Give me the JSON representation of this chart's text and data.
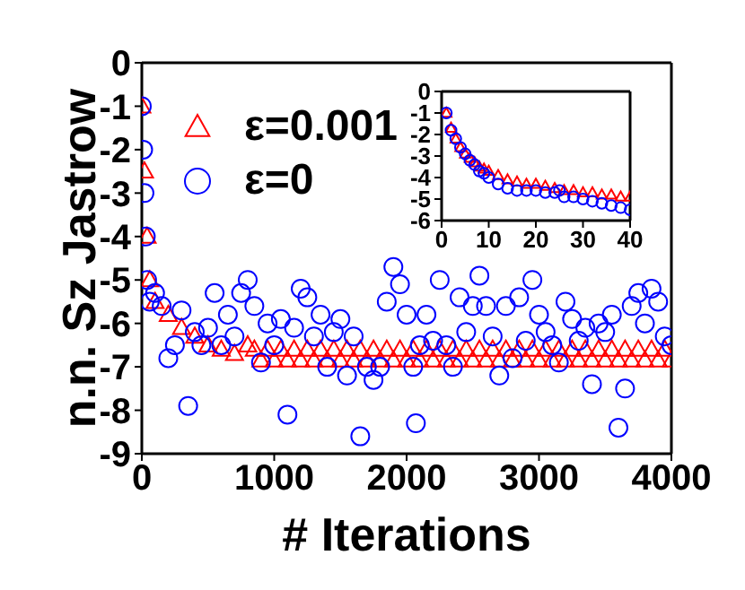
{
  "chart_data": [
    {
      "type": "scatter",
      "xlabel": "# Iterations",
      "ylabel": "n.n. Sz  Jastrow",
      "xlim": [
        0,
        4000
      ],
      "xticks": [
        0,
        1000,
        2000,
        3000,
        4000
      ],
      "ylim": [
        -9,
        0
      ],
      "yticks": [
        -9,
        -8,
        -7,
        -6,
        -5,
        -4,
        -3,
        -2,
        -1,
        0
      ],
      "legend": "top left",
      "series": [
        {
          "name": "ε=0.001",
          "color": "#ff0000",
          "marker": "triangle",
          "x": [
            0,
            20,
            40,
            60,
            100,
            200,
            300,
            400,
            500,
            600,
            700,
            800,
            850,
            900,
            950,
            1000,
            1050,
            1100,
            1150,
            1200,
            1250,
            1300,
            1350,
            1400,
            1450,
            1500,
            1550,
            1600,
            1650,
            1700,
            1750,
            1800,
            1850,
            1900,
            1950,
            2000,
            2050,
            2100,
            2150,
            2200,
            2250,
            2300,
            2350,
            2400,
            2450,
            2500,
            2550,
            2600,
            2650,
            2700,
            2750,
            2800,
            2850,
            2900,
            2950,
            3000,
            3050,
            3100,
            3150,
            3200,
            3250,
            3300,
            3350,
            3400,
            3450,
            3500,
            3550,
            3600,
            3650,
            3700,
            3750,
            3800,
            3850,
            3900,
            3950,
            4000
          ],
          "values": [
            -1,
            -2.5,
            -4,
            -5,
            -5.5,
            -5.8,
            -6.1,
            -6.3,
            -6.5,
            -6.6,
            -6.7,
            -6.5,
            -6.6,
            -6.85,
            -6.6,
            -6.85,
            -6.6,
            -6.85,
            -6.6,
            -6.85,
            -6.6,
            -6.85,
            -6.6,
            -6.85,
            -6.6,
            -6.85,
            -6.6,
            -6.85,
            -6.6,
            -6.85,
            -6.6,
            -6.85,
            -6.6,
            -6.85,
            -6.6,
            -6.85,
            -6.6,
            -6.85,
            -6.6,
            -6.85,
            -6.6,
            -6.85,
            -6.6,
            -6.85,
            -6.6,
            -6.85,
            -6.6,
            -6.85,
            -6.6,
            -6.85,
            -6.6,
            -6.85,
            -6.6,
            -6.85,
            -6.6,
            -6.85,
            -6.6,
            -6.85,
            -6.6,
            -6.85,
            -6.6,
            -6.85,
            -6.6,
            -6.85,
            -6.6,
            -6.85,
            -6.6,
            -6.85,
            -6.6,
            -6.85,
            -6.6,
            -6.85,
            -6.6,
            -6.85,
            -6.6,
            -6.85
          ]
        },
        {
          "name": "ε=0",
          "color": "#0000ff",
          "marker": "circle",
          "x": [
            0,
            10,
            20,
            30,
            40,
            60,
            100,
            150,
            200,
            250,
            300,
            350,
            400,
            450,
            500,
            550,
            600,
            650,
            700,
            750,
            800,
            850,
            900,
            950,
            1000,
            1050,
            1100,
            1150,
            1200,
            1250,
            1300,
            1350,
            1400,
            1450,
            1500,
            1550,
            1600,
            1650,
            1700,
            1750,
            1800,
            1850,
            1900,
            1950,
            2000,
            2050,
            2070,
            2100,
            2150,
            2200,
            2250,
            2300,
            2350,
            2400,
            2450,
            2500,
            2550,
            2600,
            2650,
            2700,
            2750,
            2800,
            2850,
            2900,
            2950,
            3000,
            3050,
            3100,
            3150,
            3200,
            3250,
            3300,
            3350,
            3400,
            3450,
            3500,
            3550,
            3600,
            3650,
            3700,
            3750,
            3800,
            3850,
            3900,
            3950,
            4000
          ],
          "values": [
            -1,
            -2,
            -3,
            -4,
            -5,
            -5.5,
            -5.3,
            -5.6,
            -6.8,
            -6.5,
            -5.7,
            -7.9,
            -6.2,
            -6.5,
            -6.1,
            -5.3,
            -6.5,
            -5.8,
            -6.3,
            -5.3,
            -5.0,
            -5.6,
            -6.9,
            -6.0,
            -6.5,
            -5.9,
            -8.1,
            -6.1,
            -5.2,
            -5.4,
            -6.3,
            -5.8,
            -7.0,
            -6.2,
            -5.9,
            -7.2,
            -6.3,
            -8.6,
            -7.0,
            -7.3,
            -7.0,
            -5.5,
            -4.7,
            -5.1,
            -5.8,
            -7.0,
            -8.3,
            -6.5,
            -5.8,
            -6.4,
            -5.0,
            -6.5,
            -7.0,
            -5.4,
            -6.2,
            -5.6,
            -4.9,
            -5.6,
            -6.3,
            -7.2,
            -5.6,
            -6.8,
            -5.4,
            -6.4,
            -5.0,
            -5.8,
            -6.2,
            -6.5,
            -6.9,
            -5.5,
            -5.9,
            -6.4,
            -6.1,
            -7.4,
            -6.0,
            -6.2,
            -5.8,
            -8.4,
            -7.5,
            -5.6,
            -5.3,
            -6.0,
            -5.2,
            -5.5,
            -6.3,
            -6.5
          ]
        }
      ]
    },
    {
      "type": "scatter",
      "xlim": [
        0,
        40
      ],
      "xticks": [
        0,
        10,
        20,
        30,
        40
      ],
      "ylim": [
        -6,
        0
      ],
      "yticks": [
        -6,
        -5,
        -4,
        -3,
        -2,
        -1,
        0
      ],
      "series": [
        {
          "color": "#ff0000",
          "marker": "triangle",
          "x": [
            1,
            2,
            3,
            4,
            5,
            6,
            7,
            8,
            9,
            10,
            12,
            14,
            16,
            18,
            20,
            22,
            24,
            26,
            28,
            30,
            32,
            34,
            36,
            38,
            40
          ],
          "values": [
            -1,
            -1.7,
            -2.2,
            -2.6,
            -2.9,
            -3.1,
            -3.3,
            -3.5,
            -3.6,
            -3.7,
            -3.9,
            -4.1,
            -4.2,
            -4.3,
            -4.3,
            -4.4,
            -4.5,
            -4.6,
            -4.6,
            -4.7,
            -4.7,
            -4.8,
            -4.8,
            -4.9,
            -4.9
          ]
        },
        {
          "color": "#0000ff",
          "marker": "circle",
          "x": [
            1,
            2,
            3,
            4,
            5,
            6,
            7,
            8,
            9,
            10,
            12,
            14,
            16,
            18,
            20,
            22,
            24,
            25,
            26,
            28,
            30,
            32,
            34,
            36,
            38,
            40
          ],
          "values": [
            -1,
            -1.8,
            -2.2,
            -2.6,
            -2.9,
            -3.2,
            -3.4,
            -3.7,
            -3.8,
            -4.0,
            -4.3,
            -4.5,
            -4.6,
            -4.6,
            -4.6,
            -4.7,
            -4.7,
            -4.6,
            -4.9,
            -4.9,
            -5.0,
            -5.1,
            -5.2,
            -5.3,
            -5.4,
            -5.5
          ]
        }
      ]
    }
  ]
}
